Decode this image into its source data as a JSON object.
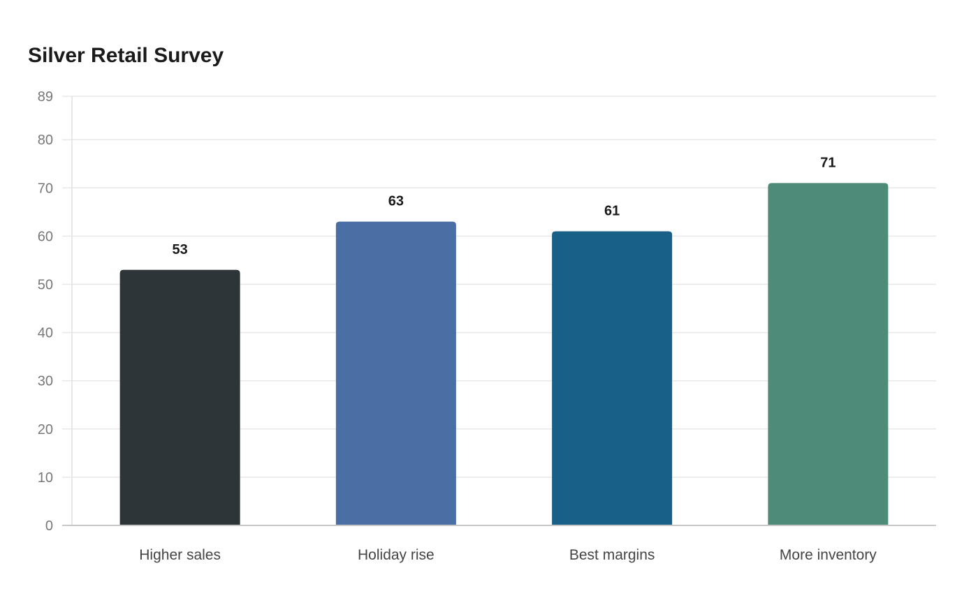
{
  "chart_data": {
    "type": "bar",
    "title": "Silver Retail Survey",
    "categories": [
      "Higher sales",
      "Holiday rise",
      "Best margins",
      "More inventory"
    ],
    "values": [
      53,
      63,
      61,
      71
    ],
    "colors": [
      "#2d3538",
      "#4a6fa5",
      "#186088",
      "#4e8c79"
    ],
    "xlabel": "",
    "ylabel": "",
    "ylim": [
      0,
      89
    ],
    "yticks": [
      0,
      10,
      20,
      30,
      40,
      50,
      60,
      70,
      80,
      89
    ],
    "grid": true,
    "data_labels": true,
    "legend": "none"
  }
}
